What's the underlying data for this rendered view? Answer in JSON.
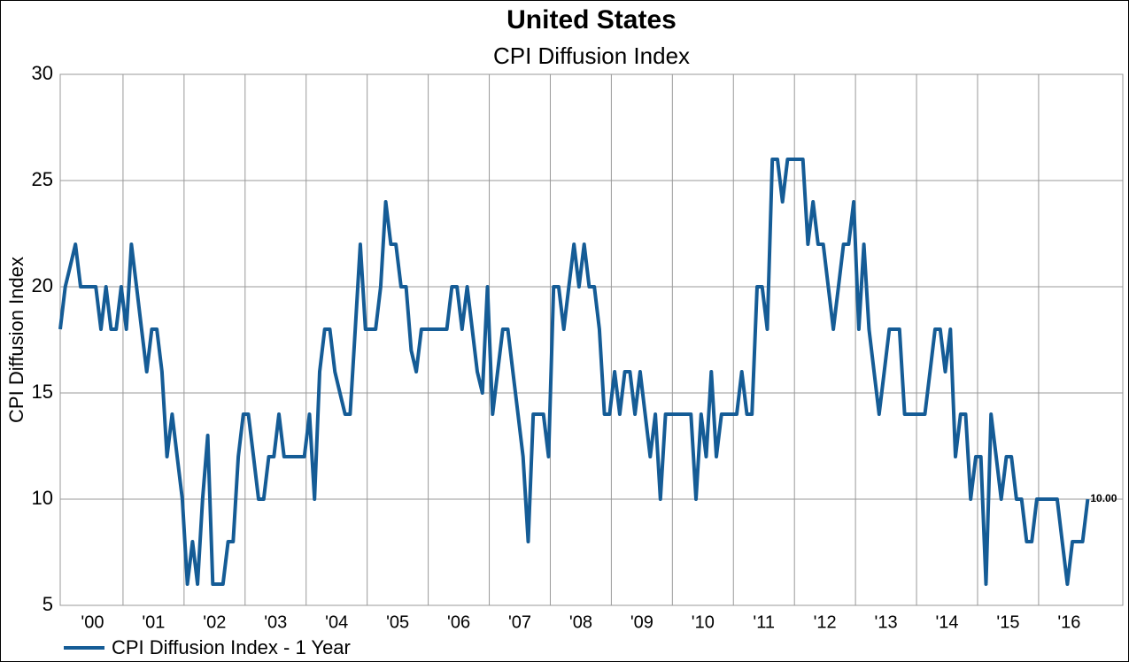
{
  "chart_data": {
    "type": "line",
    "title": "United States",
    "subtitle": "CPI Diffusion Index",
    "y_label": "CPI Diffusion Index",
    "categories": [
      null,
      null,
      null,
      null,
      null,
      null,
      "'00",
      null,
      null,
      null,
      null,
      null,
      null,
      null,
      null,
      null,
      null,
      null,
      "'01",
      null,
      null,
      null,
      null,
      null,
      null,
      null,
      null,
      null,
      null,
      null,
      "'02",
      null,
      null,
      null,
      null,
      null,
      null,
      null,
      null,
      null,
      null,
      null,
      "'03",
      null,
      null,
      null,
      null,
      null,
      null,
      null,
      null,
      null,
      null,
      null,
      "'04",
      null,
      null,
      null,
      null,
      null,
      null,
      null,
      null,
      null,
      null,
      null,
      "'05",
      null,
      null,
      null,
      null,
      null,
      null,
      null,
      null,
      null,
      null,
      null,
      "'06",
      null,
      null,
      null,
      null,
      null,
      null,
      null,
      null,
      null,
      null,
      null,
      "'07",
      null,
      null,
      null,
      null,
      null,
      null,
      null,
      null,
      null,
      null,
      null,
      "'08",
      null,
      null,
      null,
      null,
      null,
      null,
      null,
      null,
      null,
      null,
      null,
      "'09",
      null,
      null,
      null,
      null,
      null,
      null,
      null,
      null,
      null,
      null,
      null,
      "'10",
      null,
      null,
      null,
      null,
      null,
      null,
      null,
      null,
      null,
      null,
      null,
      "'11",
      null,
      null,
      null,
      null,
      null,
      null,
      null,
      null,
      null,
      null,
      null,
      "'12",
      null,
      null,
      null,
      null,
      null,
      null,
      null,
      null,
      null,
      null,
      null,
      "'13",
      null,
      null,
      null,
      null,
      null,
      null,
      null,
      null,
      null,
      null,
      null,
      "'14",
      null,
      null,
      null,
      null,
      null,
      null,
      null,
      null,
      null,
      null,
      null,
      "'15",
      null,
      null,
      null,
      null,
      null,
      null,
      null,
      null,
      null,
      null,
      null,
      "'16",
      null,
      null,
      null,
      null
    ],
    "series": [
      {
        "name": "CPI Diffusion Index - 1 Year",
        "color": "#155c96",
        "values": [
          18,
          20,
          21,
          22,
          20,
          20,
          20,
          20,
          18,
          20,
          18,
          18,
          20,
          18,
          22,
          20,
          18,
          16,
          18,
          18,
          16,
          12,
          14,
          12,
          10,
          6,
          8,
          6,
          10,
          13,
          6,
          6,
          6,
          8,
          8,
          12,
          14,
          14,
          12,
          10,
          10,
          12,
          12,
          14,
          12,
          12,
          12,
          12,
          12,
          14,
          10,
          16,
          18,
          18,
          16,
          15,
          14,
          14,
          18,
          22,
          18,
          18,
          18,
          20,
          24,
          22,
          22,
          20,
          20,
          17,
          16,
          18,
          18,
          18,
          18,
          18,
          18,
          20,
          20,
          18,
          20,
          18,
          16,
          15,
          20,
          14,
          16,
          18,
          18,
          16,
          14,
          12,
          8,
          14,
          14,
          14,
          12,
          20,
          20,
          18,
          20,
          22,
          20,
          22,
          20,
          20,
          18,
          14,
          14,
          16,
          14,
          16,
          16,
          14,
          16,
          14,
          12,
          14,
          10,
          14,
          14,
          14,
          14,
          14,
          14,
          10,
          14,
          12,
          16,
          12,
          14,
          14,
          14,
          14,
          16,
          14,
          14,
          20,
          20,
          18,
          26,
          26,
          24,
          26,
          26,
          26,
          26,
          22,
          24,
          22,
          22,
          20,
          18,
          20,
          22,
          22,
          24,
          18,
          22,
          18,
          16,
          14,
          16,
          18,
          18,
          18,
          14,
          14,
          14,
          14,
          14,
          16,
          18,
          18,
          16,
          18,
          12,
          14,
          14,
          10,
          12,
          12,
          6,
          14,
          12,
          10,
          12,
          12,
          10,
          10,
          8,
          8,
          10,
          10,
          10,
          10,
          10,
          8,
          6,
          8,
          8,
          8,
          10
        ],
        "value_labels": [
          null,
          null,
          null,
          null,
          null,
          null,
          null,
          null,
          null,
          null,
          null,
          null,
          null,
          null,
          null,
          null,
          null,
          null,
          null,
          null,
          null,
          null,
          null,
          null,
          null,
          null,
          null,
          null,
          null,
          null,
          null,
          null,
          null,
          null,
          null,
          null,
          null,
          null,
          null,
          null,
          null,
          null,
          null,
          null,
          null,
          null,
          null,
          null,
          null,
          null,
          null,
          null,
          null,
          null,
          null,
          null,
          null,
          null,
          null,
          null,
          null,
          null,
          null,
          null,
          null,
          null,
          null,
          null,
          null,
          null,
          null,
          null,
          null,
          null,
          null,
          null,
          null,
          null,
          null,
          null,
          null,
          null,
          null,
          null,
          null,
          null,
          null,
          null,
          null,
          null,
          null,
          null,
          null,
          null,
          null,
          null,
          null,
          null,
          null,
          null,
          null,
          null,
          null,
          null,
          null,
          null,
          null,
          null,
          null,
          null,
          null,
          null,
          null,
          null,
          null,
          null,
          null,
          null,
          null,
          null,
          null,
          null,
          null,
          null,
          null,
          null,
          null,
          null,
          null,
          null,
          null,
          null,
          null,
          null,
          null,
          null,
          null,
          null,
          null,
          null,
          null,
          null,
          null,
          null,
          null,
          null,
          null,
          null,
          null,
          null,
          null,
          null,
          null,
          null,
          null,
          null,
          null,
          null,
          null,
          null,
          null,
          null,
          null,
          null,
          null,
          null,
          null,
          null,
          null,
          null,
          null,
          null,
          null,
          null,
          null,
          null,
          null,
          null,
          null,
          null,
          null,
          null,
          null,
          null,
          null,
          null,
          null,
          null,
          null,
          null,
          null,
          null,
          null,
          null,
          null,
          null,
          null,
          null,
          null,
          null,
          null,
          null,
          "10.00"
        ]
      }
    ],
    "ylim": [
      5,
      30
    ],
    "yticks": [
      5,
      10,
      15,
      20,
      25,
      30
    ],
    "grid": true,
    "legend": "bottom-left"
  }
}
